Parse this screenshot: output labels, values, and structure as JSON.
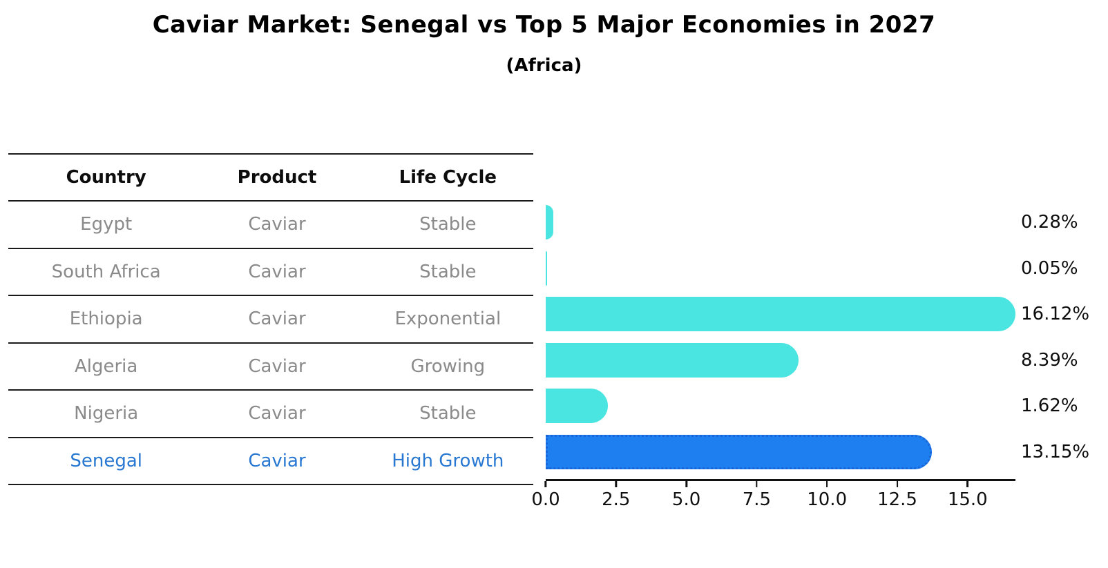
{
  "chart_data": {
    "type": "bar",
    "orientation": "horizontal",
    "title": "Caviar Market: Senegal vs Top 5 Major Economies in 2027",
    "subtitle": "(Africa)",
    "categories": [
      "Egypt",
      "South Africa",
      "Ethiopia",
      "Algeria",
      "Nigeria",
      "Senegal"
    ],
    "values": [
      0.28,
      0.05,
      16.12,
      8.39,
      1.62,
      13.15
    ],
    "bar_labels": [
      "0.28%",
      "0.05%",
      "16.12%",
      "8.39%",
      "1.62%",
      "13.15%"
    ],
    "xlim": [
      0,
      16.7
    ],
    "xticks": [
      "0.0",
      "2.5",
      "5.0",
      "7.5",
      "10.0",
      "12.5",
      "15.0"
    ],
    "highlight_index": 5,
    "legend": "none",
    "grid": "off",
    "colors": {
      "bar": "#4ae5e0",
      "highlight_bar": "#1e80f0",
      "highlight_border": "#1a66d9",
      "row_text": "#8a8a8a",
      "highlight_text": "#2878d2",
      "label_text": "#0d0d0d"
    }
  },
  "table": {
    "headers": [
      "Country",
      "Product",
      "Life Cycle"
    ],
    "rows": [
      {
        "country": "Egypt",
        "product": "Caviar",
        "life_cycle": "Stable"
      },
      {
        "country": "South Africa",
        "product": "Caviar",
        "life_cycle": "Stable"
      },
      {
        "country": "Ethiopia",
        "product": "Caviar",
        "life_cycle": "Exponential"
      },
      {
        "country": "Algeria",
        "product": "Caviar",
        "life_cycle": "Growing"
      },
      {
        "country": "Nigeria",
        "product": "Caviar",
        "life_cycle": "Stable"
      },
      {
        "country": "Senegal",
        "product": "Caviar",
        "life_cycle": "High Growth"
      }
    ],
    "highlighted_row": "Senegal"
  }
}
